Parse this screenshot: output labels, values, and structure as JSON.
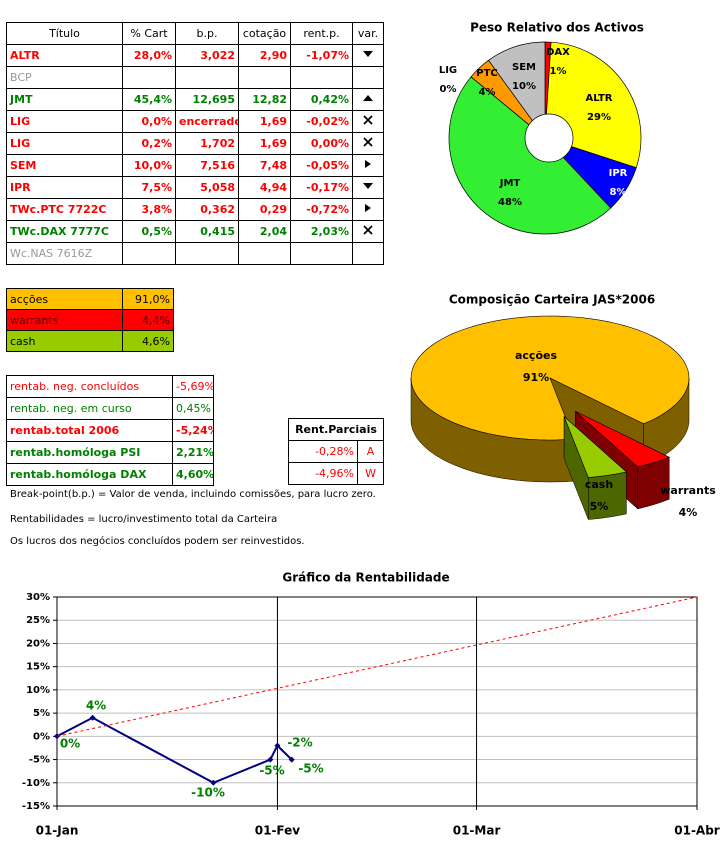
{
  "chart_data": [
    {
      "type": "pie",
      "title": "Peso Relativo dos Activos",
      "donut": true,
      "categories": [
        "DAX",
        "ALTR",
        "IPR",
        "JMT",
        "LIG",
        "PTC",
        "SEM"
      ],
      "values": [
        1,
        29,
        8,
        48,
        0,
        4,
        10
      ],
      "value_labels": [
        "1%",
        "29%",
        "8%",
        "48%",
        "0%",
        "4%",
        "10%"
      ],
      "colors": [
        "#ff0000",
        "#ffff00",
        "#0000ff",
        "#33ee33",
        "#9999ff",
        "#ff9900",
        "#c0c0c0"
      ]
    },
    {
      "type": "pie",
      "three_d": true,
      "title": "Composição Carteira JAS*2006",
      "categories": [
        "acções",
        "warrants",
        "cash"
      ],
      "values": [
        91.0,
        4.4,
        4.6
      ],
      "value_labels": [
        "91%",
        "4%",
        "5%"
      ],
      "colors": [
        "#ffc000",
        "#ff0000",
        "#99cc00"
      ],
      "exploded": [
        false,
        true,
        true
      ]
    },
    {
      "type": "line",
      "title": "Gráfico da Rentabilidade",
      "grid": true,
      "xlim": [
        0,
        90
      ],
      "xticks": [
        {
          "value": 0,
          "label": "01-Jan"
        },
        {
          "value": 31,
          "label": "01-Fev"
        },
        {
          "value": 59,
          "label": "01-Mar"
        },
        {
          "value": 90,
          "label": "01-Abr"
        }
      ],
      "ylim": [
        -15,
        30
      ],
      "yticks": [
        {
          "value": -15,
          "label": "-15%"
        },
        {
          "value": -10,
          "label": "-10%"
        },
        {
          "value": -5,
          "label": "-5%"
        },
        {
          "value": 0,
          "label": "0%"
        },
        {
          "value": 5,
          "label": "5%"
        },
        {
          "value": 10,
          "label": "10%"
        },
        {
          "value": 15,
          "label": "15%"
        },
        {
          "value": 20,
          "label": "20%"
        },
        {
          "value": 25,
          "label": "25%"
        },
        {
          "value": 30,
          "label": "30%"
        }
      ],
      "series": [
        {
          "color": "#000080",
          "markers": true,
          "x": [
            0,
            5,
            22,
            30,
            31,
            33
          ],
          "values": [
            0,
            4,
            -10,
            -5,
            -2,
            -5
          ],
          "value_labels": [
            "0%",
            "4%",
            "-10%",
            "-5%",
            "-2%",
            "-5%"
          ]
        },
        {
          "color": "#ff0000",
          "dashed": true,
          "x": [
            0,
            90
          ],
          "values": [
            0,
            30
          ]
        }
      ]
    }
  ],
  "positions_table": {
    "header": [
      "Título",
      "% Cart",
      "b.p.",
      "cotação",
      "rent.p.",
      "var."
    ],
    "rows": [
      [
        "ALTR",
        "28,0%",
        "3,022",
        "2,90",
        "-1,07%"
      ],
      [
        "BCP"
      ],
      [
        "JMT",
        "45,4%",
        "12,695",
        "12,82",
        "0,42%"
      ],
      [
        "LIG",
        "0,0%",
        "encerrado",
        "1,69",
        "-0,02%"
      ],
      [
        "LIG",
        "0,2%",
        "1,702",
        "1,69",
        "0,00%"
      ],
      [
        "SEM",
        "10,0%",
        "7,516",
        "7,48",
        "-0,05%"
      ],
      [
        "IPR",
        "7,5%",
        "5,058",
        "4,94",
        "-0,17%"
      ],
      [
        "TWc.PTC 7722C",
        "3,8%",
        "0,362",
        "0,29",
        "-0,72%"
      ],
      [
        "TWc.DAX 7777C",
        "0,5%",
        "0,415",
        "2,04",
        "2,03%"
      ],
      [
        "Wc.NAS 7616Z"
      ]
    ]
  },
  "allocation_table": {
    "rows": [
      [
        "acções",
        "91,0%"
      ],
      [
        "warrants",
        "4,4%"
      ],
      [
        "cash",
        "4,6%"
      ]
    ]
  },
  "returns_table": {
    "rows": [
      [
        "rentab. neg. concluídos",
        "-5,69%"
      ],
      [
        "rentab. neg. em curso",
        "0,45%"
      ],
      [
        "rentab.total 2006",
        "-5,24%"
      ],
      [
        "rentab.homóloga PSI",
        "2,21%"
      ],
      [
        "rentab.homóloga DAX",
        "4,60%"
      ]
    ]
  },
  "partial_returns_table": {
    "header": "Rent.Parciais",
    "rows": [
      [
        "-0,28%",
        "A"
      ],
      [
        "-4,96%",
        "W"
      ]
    ]
  },
  "notes": [
    "Break-point(b.p.) = Valor de venda, incluindo comissões, para lucro zero.",
    "Rentabilidades = lucro/investimento total da Carteira",
    "Os lucros dos negócios concluídos podem ser reinvestidos."
  ]
}
